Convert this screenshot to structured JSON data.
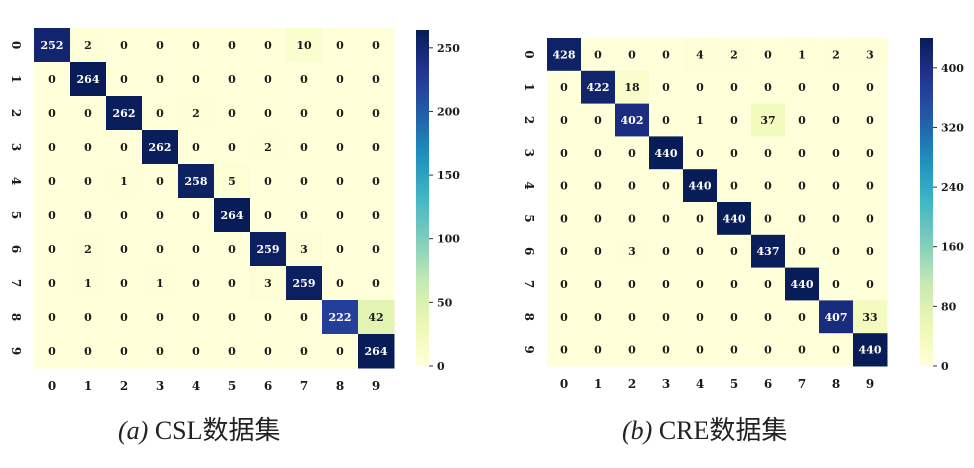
{
  "captions": [
    {
      "label": "(a)",
      "text": "CSL数据集"
    },
    {
      "label": "(b)",
      "text": "CRE数据集"
    }
  ],
  "colors": {
    "low": "#ffffd9",
    "high": "#081d58",
    "dark_text": "#ffffff",
    "light_text": "#1a1a1a"
  },
  "chart_data": [
    {
      "type": "heatmap",
      "name": "",
      "categories": [
        "0",
        "1",
        "2",
        "3",
        "4",
        "5",
        "6",
        "7",
        "8",
        "9"
      ],
      "colorbar": {
        "ticks": [
          0,
          50,
          100,
          150,
          200,
          250
        ],
        "range": [
          0,
          264
        ]
      },
      "values": [
        [
          252,
          2,
          0,
          0,
          0,
          0,
          0,
          10,
          0,
          0
        ],
        [
          0,
          264,
          0,
          0,
          0,
          0,
          0,
          0,
          0,
          0
        ],
        [
          0,
          0,
          262,
          0,
          2,
          0,
          0,
          0,
          0,
          0
        ],
        [
          0,
          0,
          0,
          262,
          0,
          0,
          2,
          0,
          0,
          0
        ],
        [
          0,
          0,
          1,
          0,
          258,
          5,
          0,
          0,
          0,
          0
        ],
        [
          0,
          0,
          0,
          0,
          0,
          264,
          0,
          0,
          0,
          0
        ],
        [
          0,
          2,
          0,
          0,
          0,
          0,
          259,
          3,
          0,
          0
        ],
        [
          0,
          1,
          0,
          1,
          0,
          0,
          3,
          259,
          0,
          0
        ],
        [
          0,
          0,
          0,
          0,
          0,
          0,
          0,
          0,
          222,
          42
        ],
        [
          0,
          0,
          0,
          0,
          0,
          0,
          0,
          0,
          0,
          264
        ]
      ]
    },
    {
      "type": "heatmap",
      "name": "",
      "categories": [
        "0",
        "1",
        "2",
        "3",
        "4",
        "5",
        "6",
        "7",
        "8",
        "9"
      ],
      "colorbar": {
        "ticks": [
          0,
          80,
          160,
          240,
          320,
          400
        ],
        "range": [
          0,
          440
        ]
      },
      "values": [
        [
          428,
          0,
          0,
          0,
          4,
          2,
          0,
          1,
          2,
          3
        ],
        [
          0,
          422,
          18,
          0,
          0,
          0,
          0,
          0,
          0,
          0
        ],
        [
          0,
          0,
          402,
          0,
          1,
          0,
          37,
          0,
          0,
          0
        ],
        [
          0,
          0,
          0,
          440,
          0,
          0,
          0,
          0,
          0,
          0
        ],
        [
          0,
          0,
          0,
          0,
          440,
          0,
          0,
          0,
          0,
          0
        ],
        [
          0,
          0,
          0,
          0,
          0,
          440,
          0,
          0,
          0,
          0
        ],
        [
          0,
          0,
          3,
          0,
          0,
          0,
          437,
          0,
          0,
          0
        ],
        [
          0,
          0,
          0,
          0,
          0,
          0,
          0,
          440,
          0,
          0
        ],
        [
          0,
          0,
          0,
          0,
          0,
          0,
          0,
          0,
          407,
          33
        ],
        [
          0,
          0,
          0,
          0,
          0,
          0,
          0,
          0,
          0,
          440
        ]
      ]
    }
  ]
}
